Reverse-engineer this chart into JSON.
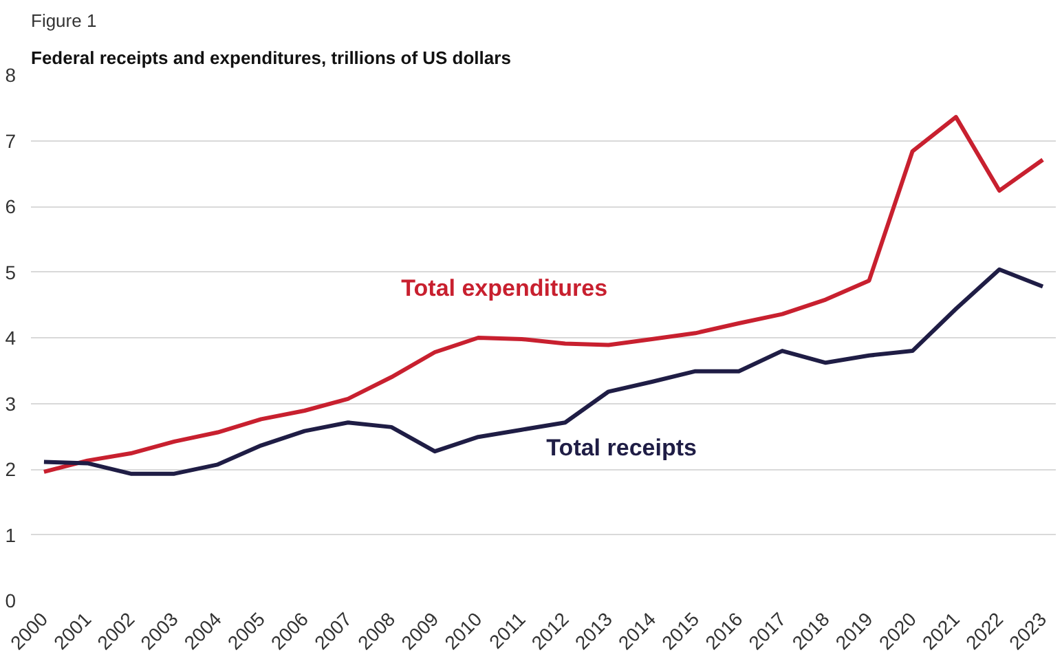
{
  "chart_data": {
    "type": "line",
    "title": "Federal receipts and expenditures, trillions of US dollars",
    "annotations": [
      "Figure 1"
    ],
    "categories": [
      "2000",
      "2001",
      "2002",
      "2003",
      "2004",
      "2005",
      "2006",
      "2007",
      "2008",
      "2009",
      "2010",
      "2011",
      "2012",
      "2013",
      "2014",
      "2015",
      "2016",
      "2017",
      "2018",
      "2019",
      "2020",
      "2021",
      "2022",
      "2023"
    ],
    "series": [
      {
        "name": "Total expenditures",
        "color": "#c8202f",
        "values": [
          1.96,
          2.13,
          2.24,
          2.42,
          2.56,
          2.76,
          2.89,
          3.07,
          3.4,
          3.78,
          4.0,
          3.98,
          3.91,
          3.89,
          3.98,
          4.07,
          4.22,
          4.36,
          4.58,
          4.87,
          6.84,
          7.36,
          6.24,
          6.71
        ]
      },
      {
        "name": "Total receipts",
        "color": "#1f1d45",
        "values": [
          2.11,
          2.09,
          1.93,
          1.93,
          2.07,
          2.36,
          2.58,
          2.71,
          2.64,
          2.27,
          2.49,
          2.6,
          2.71,
          3.18,
          3.33,
          3.49,
          3.49,
          3.8,
          3.62,
          3.73,
          3.8,
          4.44,
          5.04,
          4.78
        ]
      }
    ],
    "ylim": [
      0,
      8
    ],
    "yticks": [
      0,
      1,
      2,
      3,
      4,
      5,
      6,
      7,
      8
    ],
    "grid": "y",
    "marker": "none",
    "line_style": "solid"
  }
}
